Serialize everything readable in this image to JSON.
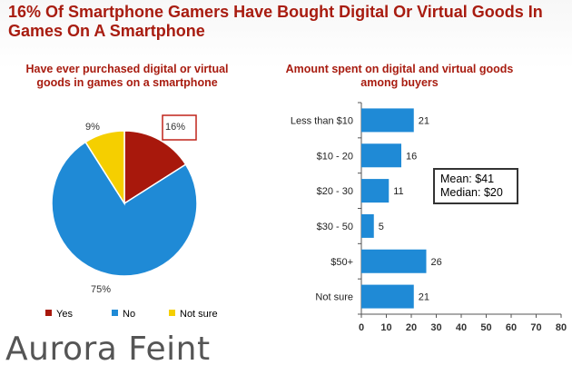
{
  "title": "16% Of Smartphone Gamers Have Bought Digital Or Virtual Goods In Games On A Smartphone",
  "logo_text": "Aurora Feint",
  "chart_data": [
    {
      "type": "pie",
      "title": "Have ever purchased digital or virtual goods in games on a smartphone",
      "categories": [
        "Yes",
        "No",
        "Not sure"
      ],
      "values": [
        16,
        75,
        9
      ],
      "slice_labels": [
        "16%",
        "75%",
        "9%"
      ],
      "colors": [
        "#a8180c",
        "#1f8ad6",
        "#f5cf00"
      ],
      "highlighted_slice": "Yes",
      "legend_position": "bottom"
    },
    {
      "type": "bar",
      "orientation": "horizontal",
      "title": "Amount spent on digital and virtual goods among buyers",
      "categories": [
        "Less than $10",
        "$10 - 20",
        "$20 - 30",
        "$30 - 50",
        "$50+",
        "Not sure"
      ],
      "values": [
        21,
        16,
        11,
        5,
        26,
        21
      ],
      "color": "#1f8ad6",
      "xlim": [
        0,
        80
      ],
      "xticks": [
        0,
        10,
        20,
        30,
        40,
        50,
        60,
        70,
        80
      ],
      "grid": false,
      "annotation": {
        "lines": [
          "Mean: $41",
          "Median: $20"
        ]
      }
    }
  ]
}
